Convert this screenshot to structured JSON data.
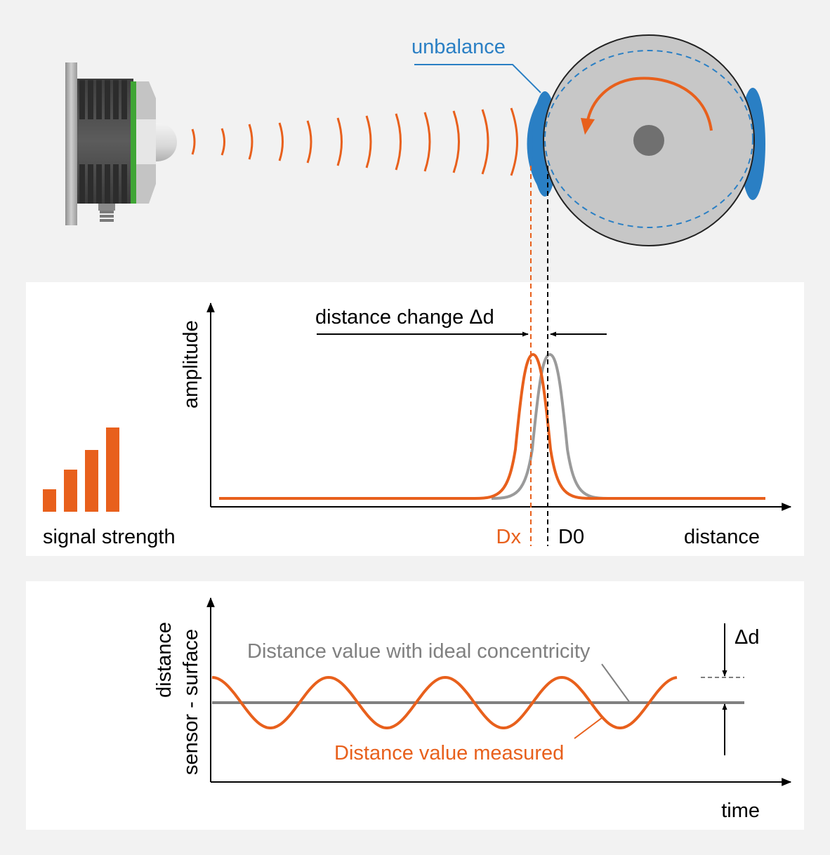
{
  "labels": {
    "unbalance": "unbalance",
    "distance_change": "distance change Δd",
    "amplitude": "amplitude",
    "signal_strength": "signal strength",
    "dx": "Dx",
    "d0": "D0",
    "distance_axis": "distance",
    "ideal": "Distance value with ideal concentricity",
    "measured": "Distance value measured",
    "delta_d": "Δd",
    "yaxis_line1": "distance",
    "yaxis_line2": "sensor - surface",
    "time": "time"
  },
  "colors": {
    "orange": "#e8601c",
    "gray": "#9a9a9a",
    "blue": "#2a7fc4",
    "black": "#000000"
  },
  "signal_bars": [
    0.27,
    0.5,
    0.73,
    1.0
  ]
}
